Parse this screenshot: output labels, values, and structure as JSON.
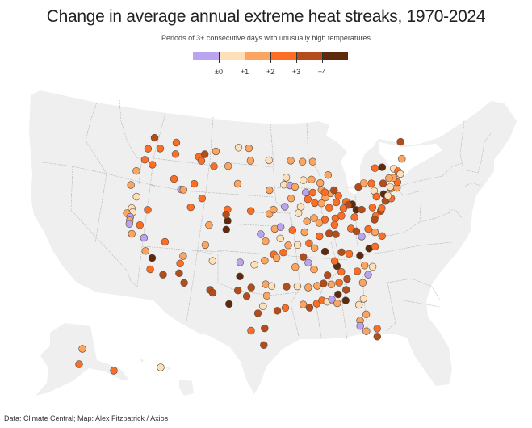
{
  "title": "Change in average annual extreme heat streaks, 1970‑2024",
  "subtitle": "Periods of 3+ consecutive days with unusually high temperatures",
  "source": "Data: Climate Central; Map: Alex Fitzpatrick / Axios",
  "legend": {
    "bins": [
      {
        "range": "< ±0",
        "color": "#b9a5ef"
      },
      {
        "range": "±0 to +1",
        "color": "#fde0b8"
      },
      {
        "range": "+1 to +2",
        "color": "#fba561"
      },
      {
        "range": "+2 to +3",
        "color": "#fb6e24"
      },
      {
        "range": "+3 to +4",
        "color": "#b34d1b"
      },
      {
        "range": "> +4",
        "color": "#5e2a0e"
      }
    ],
    "tick_labels": [
      "±0",
      "+1",
      "+2",
      "+3",
      "+4"
    ]
  },
  "chart_data": {
    "type": "map-scatter",
    "title": "Change in average annual extreme heat streaks, 1970-2024",
    "subtitle": "Periods of 3+ consecutive days with unusually high temperatures",
    "value_bins": [
      "<0",
      "0-1",
      "1-2",
      "2-3",
      "3-4",
      ">4"
    ],
    "note": "Each point is a station; cat is the index into legend.bins. lon/lat are approximate geographic positions.",
    "points": [
      {
        "lon": -122.3,
        "lat": 47.6,
        "cat": 4
      },
      {
        "lon": -120.5,
        "lat": 46.6,
        "cat": 3
      },
      {
        "lon": -117.4,
        "lat": 47.7,
        "cat": 3
      },
      {
        "lon": -123.0,
        "lat": 46.2,
        "cat": 3
      },
      {
        "lon": -117.0,
        "lat": 46.4,
        "cat": 3
      },
      {
        "lon": -123.0,
        "lat": 44.9,
        "cat": 3
      },
      {
        "lon": -121.2,
        "lat": 44.6,
        "cat": 3
      },
      {
        "lon": -124.0,
        "lat": 43.4,
        "cat": 2
      },
      {
        "lon": -112.0,
        "lat": 46.6,
        "cat": 3
      },
      {
        "lon": -110.8,
        "lat": 47.0,
        "cat": 4
      },
      {
        "lon": -108.5,
        "lat": 47.5,
        "cat": 2
      },
      {
        "lon": -111.3,
        "lat": 46.2,
        "cat": 3
      },
      {
        "lon": -108.5,
        "lat": 45.8,
        "cat": 3
      },
      {
        "lon": -105.5,
        "lat": 46.0,
        "cat": 2
      },
      {
        "lon": -124.2,
        "lat": 41.7,
        "cat": 2
      },
      {
        "lon": -116.2,
        "lat": 43.6,
        "cat": 3
      },
      {
        "lon": -114.4,
        "lat": 42.6,
        "cat": 0
      },
      {
        "lon": -113.9,
        "lat": 42.6,
        "cat": 2
      },
      {
        "lon": -112.0,
        "lat": 43.5,
        "cat": 3
      },
      {
        "lon": -110.0,
        "lat": 42.0,
        "cat": 3
      },
      {
        "lon": -122.5,
        "lat": 40.6,
        "cat": 1
      },
      {
        "lon": -119.8,
        "lat": 39.5,
        "cat": 3
      },
      {
        "lon": -122.8,
        "lat": 39.2,
        "cat": 1
      },
      {
        "lon": -122.4,
        "lat": 38.8,
        "cat": 1
      },
      {
        "lon": -123.4,
        "lat": 38.5,
        "cat": 2
      },
      {
        "lon": -122.6,
        "lat": 38.2,
        "cat": 0
      },
      {
        "lon": -122.5,
        "lat": 37.8,
        "cat": 2
      },
      {
        "lon": -122.4,
        "lat": 37.4,
        "cat": 0
      },
      {
        "lon": -120.5,
        "lat": 37.6,
        "cat": 3
      },
      {
        "lon": -121.5,
        "lat": 36.4,
        "cat": 2
      },
      {
        "lon": -119.2,
        "lat": 36.3,
        "cat": 0
      },
      {
        "lon": -118.4,
        "lat": 34.9,
        "cat": 2
      },
      {
        "lon": -117.0,
        "lat": 34.3,
        "cat": 5
      },
      {
        "lon": -116.9,
        "lat": 33.0,
        "cat": 3
      },
      {
        "lon": -114.6,
        "lat": 32.7,
        "cat": 4
      },
      {
        "lon": -115.4,
        "lat": 36.4,
        "cat": 3
      },
      {
        "lon": -111.8,
        "lat": 35.2,
        "cat": 2
      },
      {
        "lon": -112.1,
        "lat": 34.3,
        "cat": 3
      },
      {
        "lon": -112.0,
        "lat": 33.2,
        "cat": 4
      },
      {
        "lon": -110.9,
        "lat": 32.2,
        "cat": 4
      },
      {
        "lon": -108.2,
        "lat": 36.8,
        "cat": 2
      },
      {
        "lon": -106.6,
        "lat": 35.1,
        "cat": 1
      },
      {
        "lon": -106.5,
        "lat": 31.8,
        "cat": 4
      },
      {
        "lon": -106.0,
        "lat": 31.5,
        "cat": 4
      },
      {
        "lon": -111.9,
        "lat": 40.8,
        "cat": 3
      },
      {
        "lon": -108.0,
        "lat": 39.1,
        "cat": 2
      },
      {
        "lon": -104.8,
        "lat": 41.1,
        "cat": 3
      },
      {
        "lon": -104.6,
        "lat": 39.8,
        "cat": 5
      },
      {
        "lon": -104.7,
        "lat": 38.8,
        "cat": 5
      },
      {
        "lon": -105.0,
        "lat": 40.5,
        "cat": 4
      },
      {
        "lon": -103.6,
        "lat": 48.2,
        "cat": 1
      },
      {
        "lon": -101.3,
        "lat": 48.2,
        "cat": 2
      },
      {
        "lon": -100.8,
        "lat": 46.8,
        "cat": 2
      },
      {
        "lon": -96.8,
        "lat": 46.9,
        "cat": 1
      },
      {
        "lon": -103.2,
        "lat": 44.1,
        "cat": 2
      },
      {
        "lon": -96.7,
        "lat": 43.5,
        "cat": 2
      },
      {
        "lon": -100.3,
        "lat": 41.1,
        "cat": 3
      },
      {
        "lon": -96.7,
        "lat": 40.8,
        "cat": 2
      },
      {
        "lon": -95.9,
        "lat": 41.3,
        "cat": 2
      },
      {
        "lon": -98.3,
        "lat": 38.5,
        "cat": 0
      },
      {
        "lon": -97.4,
        "lat": 37.7,
        "cat": 2
      },
      {
        "lon": -95.7,
        "lat": 39.1,
        "cat": 2
      },
      {
        "lon": -94.6,
        "lat": 39.3,
        "cat": 0
      },
      {
        "lon": -94.7,
        "lat": 38.0,
        "cat": 1
      },
      {
        "lon": -93.2,
        "lat": 44.9,
        "cat": 1
      },
      {
        "lon": -92.1,
        "lat": 46.8,
        "cat": 2
      },
      {
        "lon": -93.7,
        "lat": 44.1,
        "cat": 1
      },
      {
        "lon": -92.5,
        "lat": 44.0,
        "cat": 0
      },
      {
        "lon": -91.5,
        "lat": 43.8,
        "cat": 2
      },
      {
        "lon": -93.7,
        "lat": 41.6,
        "cat": 0
      },
      {
        "lon": -92.4,
        "lat": 42.5,
        "cat": 2
      },
      {
        "lon": -90.6,
        "lat": 41.5,
        "cat": 1
      },
      {
        "lon": -91.1,
        "lat": 40.8,
        "cat": 1
      },
      {
        "lon": -89.6,
        "lat": 46.6,
        "cat": 2
      },
      {
        "lon": -89.7,
        "lat": 44.5,
        "cat": 1
      },
      {
        "lon": -88.0,
        "lat": 44.5,
        "cat": 2
      },
      {
        "lon": -89.4,
        "lat": 43.1,
        "cat": 0
      },
      {
        "lon": -88.0,
        "lat": 43.0,
        "cat": 3
      },
      {
        "lon": -87.8,
        "lat": 41.8,
        "cat": 3
      },
      {
        "lon": -89.1,
        "lat": 42.3,
        "cat": 3
      },
      {
        "lon": -89.6,
        "lat": 39.8,
        "cat": 2
      },
      {
        "lon": -88.2,
        "lat": 40.1,
        "cat": 2
      },
      {
        "lon": -90.2,
        "lat": 38.6,
        "cat": 2
      },
      {
        "lon": -92.4,
        "lat": 38.9,
        "cat": 3
      },
      {
        "lon": -93.3,
        "lat": 37.2,
        "cat": 2
      },
      {
        "lon": -91.6,
        "lat": 37.2,
        "cat": 1
      },
      {
        "lon": -89.5,
        "lat": 37.3,
        "cat": 3
      },
      {
        "lon": -97.5,
        "lat": 35.5,
        "cat": 2
      },
      {
        "lon": -95.9,
        "lat": 36.2,
        "cat": 3
      },
      {
        "lon": -95.4,
        "lat": 35.8,
        "cat": 2
      },
      {
        "lon": -99.3,
        "lat": 35.0,
        "cat": 1
      },
      {
        "lon": -101.8,
        "lat": 35.2,
        "cat": 0
      },
      {
        "lon": -101.7,
        "lat": 33.6,
        "cat": 5
      },
      {
        "lon": -101.9,
        "lat": 32.0,
        "cat": 4
      },
      {
        "lon": -103.2,
        "lat": 30.4,
        "cat": 5
      },
      {
        "lon": -100.4,
        "lat": 31.4,
        "cat": 4
      },
      {
        "lon": -99.7,
        "lat": 32.4,
        "cat": 4
      },
      {
        "lon": -97.3,
        "lat": 32.8,
        "cat": 2
      },
      {
        "lon": -96.3,
        "lat": 32.6,
        "cat": 1
      },
      {
        "lon": -97.7,
        "lat": 30.3,
        "cat": 1
      },
      {
        "lon": -97.1,
        "lat": 31.5,
        "cat": 2
      },
      {
        "lon": -98.5,
        "lat": 29.5,
        "cat": 4
      },
      {
        "lon": -99.5,
        "lat": 27.5,
        "cat": 3
      },
      {
        "lon": -97.4,
        "lat": 27.8,
        "cat": 4
      },
      {
        "lon": -97.5,
        "lat": 25.9,
        "cat": 4
      },
      {
        "lon": -95.4,
        "lat": 29.8,
        "cat": 4
      },
      {
        "lon": -94.1,
        "lat": 30.1,
        "cat": 3
      },
      {
        "lon": -93.8,
        "lat": 32.5,
        "cat": 4
      },
      {
        "lon": -92.2,
        "lat": 34.7,
        "cat": 2
      },
      {
        "lon": -94.2,
        "lat": 36.4,
        "cat": 3
      },
      {
        "lon": -90.7,
        "lat": 35.8,
        "cat": 4
      },
      {
        "lon": -92.0,
        "lat": 32.5,
        "cat": 1
      },
      {
        "lon": -91.2,
        "lat": 30.4,
        "cat": 2
      },
      {
        "lon": -90.2,
        "lat": 30.0,
        "cat": 4
      },
      {
        "lon": -89.0,
        "lat": 30.4,
        "cat": 3
      },
      {
        "lon": -88.1,
        "lat": 30.7,
        "cat": 3
      },
      {
        "lon": -90.2,
        "lat": 32.3,
        "cat": 2
      },
      {
        "lon": -89.0,
        "lat": 34.3,
        "cat": 2
      },
      {
        "lon": -88.7,
        "lat": 32.4,
        "cat": 2
      },
      {
        "lon": -87.3,
        "lat": 30.5,
        "cat": 1
      },
      {
        "lon": -86.5,
        "lat": 30.7,
        "cat": 0
      },
      {
        "lon": -85.7,
        "lat": 30.2,
        "cat": 2
      },
      {
        "lon": -89.9,
        "lat": 35.1,
        "cat": 0
      },
      {
        "lon": -86.8,
        "lat": 33.5,
        "cat": 4
      },
      {
        "lon": -86.3,
        "lat": 32.4,
        "cat": 2
      },
      {
        "lon": -87.6,
        "lat": 32.6,
        "cat": 4
      },
      {
        "lon": -85.4,
        "lat": 31.2,
        "cat": 5
      },
      {
        "lon": -84.3,
        "lat": 30.4,
        "cat": 5
      },
      {
        "lon": -84.0,
        "lat": 31.6,
        "cat": 4
      },
      {
        "lon": -85.0,
        "lat": 32.5,
        "cat": 3
      },
      {
        "lon": -84.4,
        "lat": 33.7,
        "cat": 3
      },
      {
        "lon": -85.0,
        "lat": 34.4,
        "cat": 5
      },
      {
        "lon": -83.6,
        "lat": 32.8,
        "cat": 4
      },
      {
        "lon": -86.8,
        "lat": 36.2,
        "cat": 5
      },
      {
        "lon": -88.6,
        "lat": 36.7,
        "cat": 2
      },
      {
        "lon": -85.3,
        "lat": 35.0,
        "cat": 3
      },
      {
        "lon": -83.9,
        "lat": 35.9,
        "cat": 4
      },
      {
        "lon": -82.6,
        "lat": 35.6,
        "cat": 3
      },
      {
        "lon": -81.7,
        "lat": 33.5,
        "cat": 3
      },
      {
        "lon": -81.1,
        "lat": 32.1,
        "cat": 2
      },
      {
        "lon": -80.0,
        "lat": 32.9,
        "cat": 0
      },
      {
        "lon": -79.0,
        "lat": 33.7,
        "cat": 1
      },
      {
        "lon": -80.8,
        "lat": 35.2,
        "cat": 5
      },
      {
        "lon": -80.3,
        "lat": 34.0,
        "cat": 2
      },
      {
        "lon": -79.0,
        "lat": 35.8,
        "cat": 5
      },
      {
        "lon": -77.9,
        "lat": 35.9,
        "cat": 3
      },
      {
        "lon": -81.4,
        "lat": 30.3,
        "cat": 1
      },
      {
        "lon": -82.3,
        "lat": 29.7,
        "cat": 1
      },
      {
        "lon": -81.4,
        "lat": 28.5,
        "cat": 2
      },
      {
        "lon": -82.5,
        "lat": 27.9,
        "cat": 2
      },
      {
        "lon": -82.6,
        "lat": 27.3,
        "cat": 0
      },
      {
        "lon": -81.8,
        "lat": 26.6,
        "cat": 2
      },
      {
        "lon": -80.1,
        "lat": 26.7,
        "cat": 3
      },
      {
        "lon": -80.3,
        "lat": 25.8,
        "cat": 4
      },
      {
        "lon": -86.2,
        "lat": 39.8,
        "cat": 3
      },
      {
        "lon": -87.5,
        "lat": 38.0,
        "cat": 3
      },
      {
        "lon": -85.7,
        "lat": 38.2,
        "cat": 4
      },
      {
        "lon": -84.5,
        "lat": 38.0,
        "cat": 4
      },
      {
        "lon": -86.5,
        "lat": 41.7,
        "cat": 2
      },
      {
        "lon": -85.1,
        "lat": 41.1,
        "cat": 3
      },
      {
        "lon": -87.3,
        "lat": 39.5,
        "cat": 2
      },
      {
        "lon": -84.2,
        "lat": 39.8,
        "cat": 3
      },
      {
        "lon": -84.5,
        "lat": 39.1,
        "cat": 3
      },
      {
        "lon": -83.0,
        "lat": 40.0,
        "cat": 3
      },
      {
        "lon": -81.7,
        "lat": 41.5,
        "cat": 3
      },
      {
        "lon": -83.6,
        "lat": 41.6,
        "cat": 3
      },
      {
        "lon": -80.6,
        "lat": 41.1,
        "cat": 5
      },
      {
        "lon": -81.4,
        "lat": 41.1,
        "cat": 4
      },
      {
        "lon": -82.4,
        "lat": 40.8,
        "cat": 3
      },
      {
        "lon": -85.6,
        "lat": 42.3,
        "cat": 2
      },
      {
        "lon": -84.5,
        "lat": 42.7,
        "cat": 2
      },
      {
        "lon": -83.0,
        "lat": 42.3,
        "cat": 3
      },
      {
        "lon": -83.7,
        "lat": 43.0,
        "cat": 4
      },
      {
        "lon": -86.2,
        "lat": 43.2,
        "cat": 2
      },
      {
        "lon": -84.5,
        "lat": 44.8,
        "cat": 2
      },
      {
        "lon": -86.3,
        "lat": 44.0,
        "cat": 2
      },
      {
        "lon": -87.4,
        "lat": 46.5,
        "cat": 2
      },
      {
        "lon": -85.6,
        "lat": 42.9,
        "cat": 3
      },
      {
        "lon": -80.0,
        "lat": 40.4,
        "cat": 5
      },
      {
        "lon": -79.0,
        "lat": 40.3,
        "cat": 4
      },
      {
        "lon": -80.6,
        "lat": 39.6,
        "cat": 3
      },
      {
        "lon": -81.6,
        "lat": 38.4,
        "cat": 3
      },
      {
        "lon": -80.7,
        "lat": 38.0,
        "cat": 4
      },
      {
        "lon": -79.9,
        "lat": 37.3,
        "cat": 0
      },
      {
        "lon": -78.5,
        "lat": 38.0,
        "cat": 3
      },
      {
        "lon": -77.4,
        "lat": 37.5,
        "cat": 2
      },
      {
        "lon": -76.3,
        "lat": 36.9,
        "cat": 3
      },
      {
        "lon": -76.6,
        "lat": 39.3,
        "cat": 3
      },
      {
        "lon": -77.0,
        "lat": 38.9,
        "cat": 4
      },
      {
        "lon": -75.5,
        "lat": 39.7,
        "cat": 4
      },
      {
        "lon": -75.2,
        "lat": 40.0,
        "cat": 3
      },
      {
        "lon": -76.9,
        "lat": 40.3,
        "cat": 3
      },
      {
        "lon": -78.8,
        "lat": 42.9,
        "cat": 4
      },
      {
        "lon": -77.6,
        "lat": 43.2,
        "cat": 2
      },
      {
        "lon": -76.1,
        "lat": 43.0,
        "cat": 3
      },
      {
        "lon": -75.9,
        "lat": 42.1,
        "cat": 1
      },
      {
        "lon": -73.8,
        "lat": 42.7,
        "cat": 4
      },
      {
        "lon": -75.7,
        "lat": 41.4,
        "cat": 3
      },
      {
        "lon": -74.2,
        "lat": 41.5,
        "cat": 5
      },
      {
        "lon": -73.9,
        "lat": 40.8,
        "cat": 4
      },
      {
        "lon": -74.2,
        "lat": 40.7,
        "cat": 4
      },
      {
        "lon": -73.0,
        "lat": 40.8,
        "cat": 3
      },
      {
        "lon": -72.6,
        "lat": 41.9,
        "cat": 2
      },
      {
        "lon": -71.4,
        "lat": 41.8,
        "cat": 2
      },
      {
        "lon": -71.0,
        "lat": 42.4,
        "cat": 3
      },
      {
        "lon": -71.5,
        "lat": 43.0,
        "cat": 2
      },
      {
        "lon": -72.6,
        "lat": 42.1,
        "cat": 1
      },
      {
        "lon": -73.2,
        "lat": 44.5,
        "cat": 5
      },
      {
        "lon": -71.0,
        "lat": 44.0,
        "cat": 1
      },
      {
        "lon": -70.3,
        "lat": 43.6,
        "cat": 3
      },
      {
        "lon": -70.0,
        "lat": 43.2,
        "cat": 1
      },
      {
        "lon": -68.8,
        "lat": 44.8,
        "cat": 2
      },
      {
        "lon": -68.0,
        "lat": 46.7,
        "cat": 4
      },
      {
        "lon": -72.4,
        "lat": 43.1,
        "cat": 2
      },
      {
        "lon": -73.5,
        "lat": 41.2,
        "cat": 1
      },
      {
        "lon": -74.7,
        "lat": 44.6,
        "cat": 3
      },
      {
        "lon": -149.9,
        "lat": 61.2,
        "cat": 2
      },
      {
        "lon": -151.0,
        "lat": 59.6,
        "cat": 3
      },
      {
        "lon": -135.0,
        "lat": 57.5,
        "cat": 3
      },
      {
        "lon": -157.9,
        "lat": 21.3,
        "cat": 1
      }
    ]
  }
}
